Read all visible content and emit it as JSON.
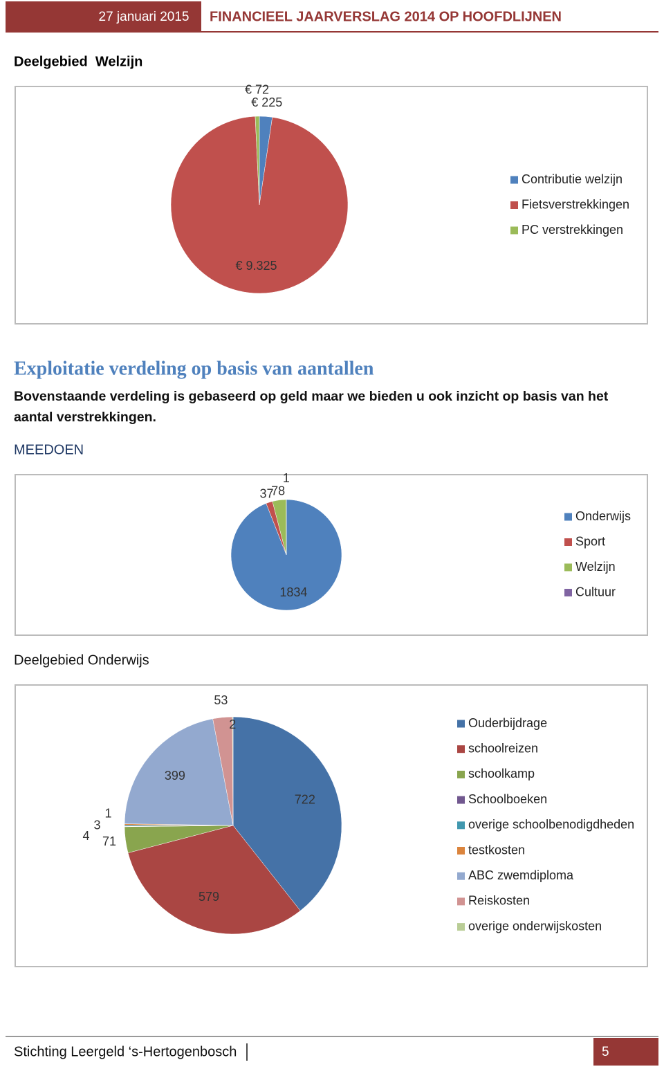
{
  "header": {
    "date": "27 januari 2015",
    "title": "FINANCIEEL JAARVERSLAG 2014 OP HOOFDLIJNEN"
  },
  "section_welzijn": "Deelgebied  Welzijn",
  "exploitatie": {
    "title": "Exploitatie verdeling op basis van aantallen",
    "text": "Bovenstaande verdeling is gebaseerd op geld maar we bieden u ook inzicht op basis van het aantal verstrekkingen."
  },
  "meedoen": "MEEDOEN",
  "section_onderwijs": "Deelgebied Onderwijs",
  "chart_data": [
    {
      "type": "pie",
      "categories": [
        "Contributie welzijn",
        "Fietsverstrekkingen",
        "PC verstrekkingen"
      ],
      "values": [
        225,
        9325,
        72
      ],
      "value_labels": [
        "€ 225",
        "€ 9.325",
        "€ 72"
      ],
      "colors": [
        "#4f81bd",
        "#c0504d",
        "#9bbb59"
      ]
    },
    {
      "type": "pie",
      "categories": [
        "Onderwijs",
        "Sport",
        "Welzijn",
        "Cultuur"
      ],
      "values": [
        1834,
        37,
        78,
        1
      ],
      "colors": [
        "#4f81bd",
        "#c0504d",
        "#9bbb59",
        "#8064a2"
      ]
    },
    {
      "type": "pie",
      "categories": [
        "Ouderbijdrage",
        "schoolreizen",
        "schoolkamp",
        "Schoolboeken",
        "overige schoolbenodigdheden",
        "testkosten",
        "ABC zwemdiploma",
        "Reiskosten",
        "overige onderwijskosten"
      ],
      "values": [
        722,
        579,
        71,
        1,
        3,
        4,
        399,
        53,
        2
      ],
      "colors": [
        "#4572a7",
        "#aa4643",
        "#89a54e",
        "#71588f",
        "#4198af",
        "#db843d",
        "#93a9cf",
        "#d19392",
        "#b9cd96"
      ]
    }
  ],
  "footer": {
    "text": "Stichting Leergeld ‘s-Hertogenbosch",
    "page": 5
  }
}
